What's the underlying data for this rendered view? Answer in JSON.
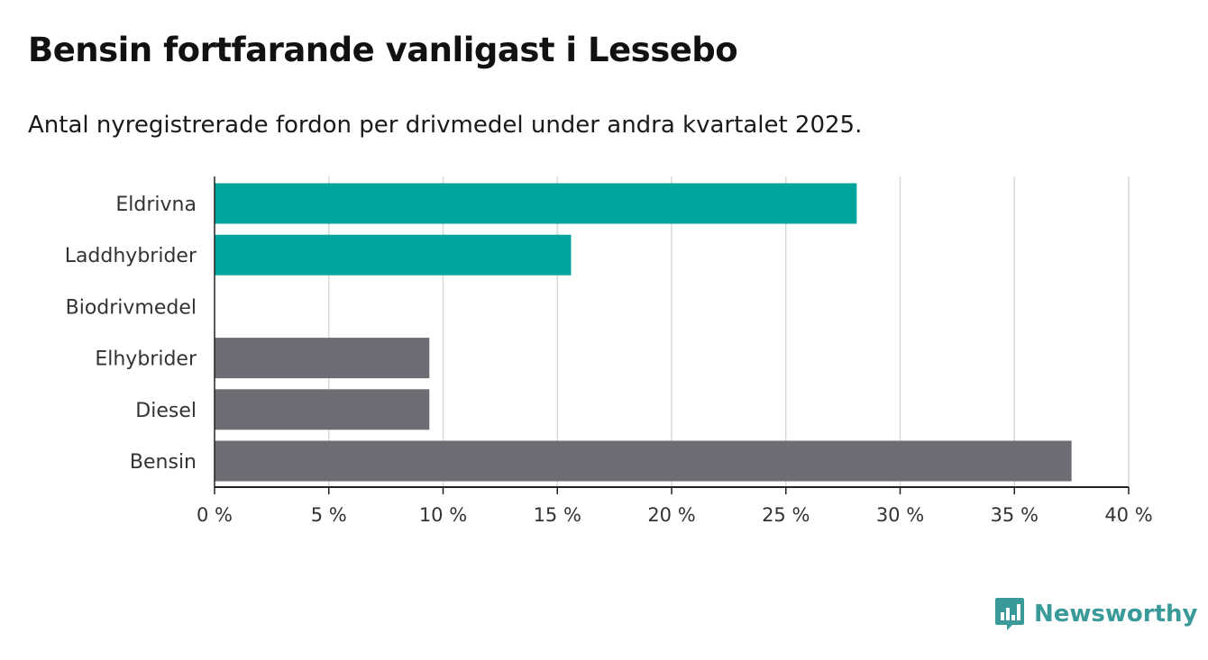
{
  "header": {
    "title": "Bensin fortfarande vanligast i Lessebo",
    "subtitle": "Antal nyregistrerade fordon per drivmedel under andra kvartalet 2025."
  },
  "brand": {
    "name": "Newsworthy",
    "icon": "newsworthy-logo-icon",
    "color": "#3a9a9a"
  },
  "chart_data": {
    "type": "bar",
    "orientation": "horizontal",
    "categories": [
      "Eldrivna",
      "Laddhybrider",
      "Biodrivmedel",
      "Elhybrider",
      "Diesel",
      "Bensin"
    ],
    "values": [
      28.1,
      15.6,
      0,
      9.4,
      9.4,
      37.5
    ],
    "colors": [
      "#00a49a",
      "#00a49a",
      "#00a49a",
      "#6e6d73",
      "#6e6d73",
      "#6e6d73"
    ],
    "xlim": [
      0,
      40
    ],
    "xticks": [
      0,
      5,
      10,
      15,
      20,
      25,
      30,
      35,
      40
    ],
    "tick_suffix": " %",
    "grid": true,
    "xlabel": "",
    "ylabel": ""
  }
}
